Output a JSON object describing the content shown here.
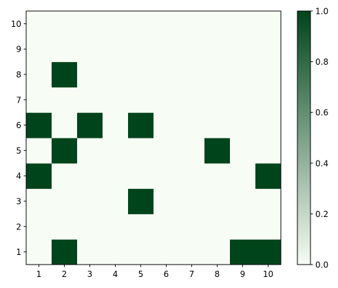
{
  "chart_data": {
    "type": "heatmap",
    "title": "",
    "xlabel": "",
    "ylabel": "",
    "x": [
      1,
      2,
      3,
      4,
      5,
      6,
      7,
      8,
      9,
      10
    ],
    "y": [
      1,
      2,
      3,
      4,
      5,
      6,
      7,
      8,
      9,
      10
    ],
    "xlim": [
      0.5,
      10.5
    ],
    "ylim": [
      0.5,
      10.5
    ],
    "x_tick_labels": [
      "1",
      "2",
      "3",
      "4",
      "5",
      "6",
      "7",
      "8",
      "9",
      "10"
    ],
    "y_tick_labels": [
      "1",
      "2",
      "3",
      "4",
      "5",
      "6",
      "7",
      "8",
      "9",
      "10"
    ],
    "values": [
      [
        0,
        1,
        0,
        0,
        0,
        0,
        0,
        0,
        1,
        1
      ],
      [
        0,
        0,
        0,
        0,
        0,
        0,
        0,
        0,
        0,
        0
      ],
      [
        0,
        0,
        0,
        0,
        1,
        0,
        0,
        0,
        0,
        0
      ],
      [
        1,
        0,
        0,
        0,
        0,
        0,
        0,
        0,
        0,
        1
      ],
      [
        0,
        1,
        0,
        0,
        0,
        0,
        0,
        1,
        0,
        0
      ],
      [
        1,
        0,
        1,
        0,
        1,
        0,
        0,
        0,
        0,
        0
      ],
      [
        0,
        0,
        0,
        0,
        0,
        0,
        0,
        0,
        0,
        0
      ],
      [
        0,
        1,
        0,
        0,
        0,
        0,
        0,
        0,
        0,
        0
      ],
      [
        0,
        0,
        0,
        0,
        0,
        0,
        0,
        0,
        0,
        0
      ],
      [
        0,
        0,
        0,
        0,
        0,
        0,
        0,
        0,
        0,
        0
      ]
    ],
    "grid": false,
    "colormap": "Greens",
    "colorbar": {
      "range": [
        0,
        1
      ],
      "ticks": [
        0.0,
        0.2,
        0.4,
        0.6,
        0.8,
        1.0
      ],
      "tick_labels": [
        "0.0",
        "0.2",
        "0.4",
        "0.6",
        "0.8",
        "1.0"
      ]
    },
    "colors": {
      "low": "#f7fcf5",
      "high": "#00441b"
    }
  }
}
